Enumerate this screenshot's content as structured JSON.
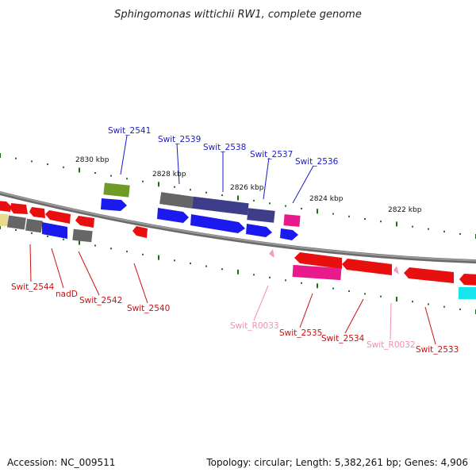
{
  "title": "Sphingomonas wittichii RW1, complete genome",
  "accession_text": "Accession: NC_009511",
  "summary_text": "Topology: circular; Length: 5,382,261 bp; Genes: 4,906",
  "colors": {
    "backbone": "#8c8c8c",
    "tick": "#1b6e1b",
    "label_forward": "#1a1acc",
    "label_reverse": "#cc0f0f",
    "label_rna": "#f090b0"
  },
  "scale_labels": [
    "2830 kbp",
    "2828 kbp",
    "2826 kbp",
    "2824 kbp",
    "2822 kbp"
  ],
  "genes": [
    {
      "label": "Swit_2541",
      "color": "#6f9a28",
      "strand": "forward"
    },
    {
      "label": "Swit_2539",
      "color": "#1a1aee",
      "strand": "forward"
    },
    {
      "label": "Swit_2538",
      "color": "#1a1aee",
      "strand": "forward"
    },
    {
      "label": "Swit_2537",
      "color": "#1a1aee",
      "strand": "forward"
    },
    {
      "label": "Swit_2536",
      "color": "#1a1aee",
      "strand": "forward"
    },
    {
      "label": "Swit_2544",
      "color": "#e80f0f",
      "strand": "reverse"
    },
    {
      "label": "nadD",
      "color": "#e80f0f",
      "strand": "reverse"
    },
    {
      "label": "Swit_2542",
      "color": "#e80f0f",
      "strand": "reverse"
    },
    {
      "label": "Swit_2540",
      "color": "#e80f0f",
      "strand": "reverse"
    },
    {
      "label": "Swit_R0033",
      "color": "#f39cc0",
      "strand": "reverse"
    },
    {
      "label": "Swit_2535",
      "color": "#e80f0f",
      "strand": "reverse"
    },
    {
      "label": "Swit_2534",
      "color": "#e80f0f",
      "strand": "reverse"
    },
    {
      "label": "Swit_R0032",
      "color": "#f39cc0",
      "strand": "reverse"
    },
    {
      "label": "Swit_2533",
      "color": "#e80f0f",
      "strand": "reverse"
    }
  ]
}
